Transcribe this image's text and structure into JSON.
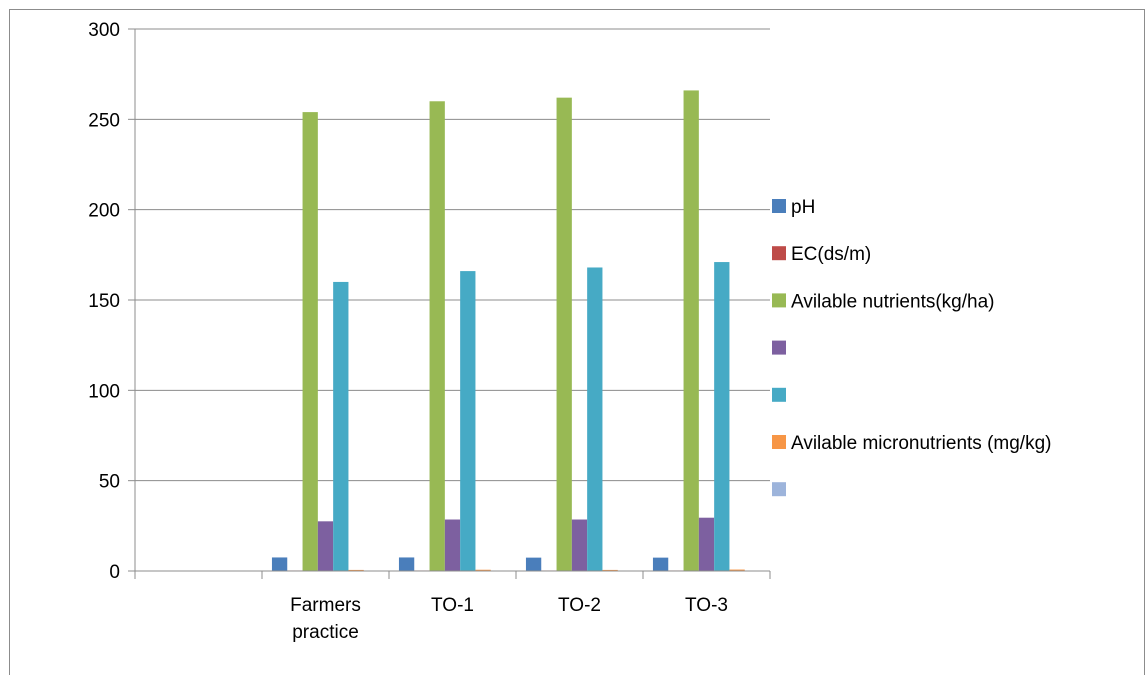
{
  "chart_data": {
    "type": "bar",
    "categories": [
      [
        "",
        ""
      ],
      [
        "Farmers",
        "practice"
      ],
      [
        "TO-1",
        ""
      ],
      [
        "TO-2",
        ""
      ],
      [
        "TO-3",
        ""
      ]
    ],
    "ylim": [
      0,
      300
    ],
    "yticks": [
      0,
      50,
      100,
      150,
      200,
      250,
      300
    ],
    "grid": true,
    "legend_position": "right",
    "series": [
      {
        "name": "pH",
        "color": "#4a7ebb",
        "values": [
          0,
          7.5,
          7.5,
          7.4,
          7.4
        ]
      },
      {
        "name": "EC(ds/m)",
        "color": "#be4b48",
        "values": [
          0,
          0.3,
          0.3,
          0.3,
          0.3
        ]
      },
      {
        "name": "Avilable nutrients(kg/ha)",
        "color": "#98b954",
        "values": [
          0,
          254,
          260,
          262,
          266
        ]
      },
      {
        "name": "",
        "color": "#7d60a0",
        "values": [
          0,
          27.5,
          28.5,
          28.5,
          29.5
        ]
      },
      {
        "name": "",
        "color": "#46aac5",
        "values": [
          0,
          160,
          166,
          168,
          171
        ]
      },
      {
        "name": "Avilable micronutrients (mg/kg)",
        "color": "#f79646",
        "values": [
          0,
          0.6,
          0.7,
          0.6,
          0.8
        ]
      },
      {
        "name": "",
        "color": "#9db4db",
        "values": [
          0,
          0.2,
          0.2,
          0.2,
          0.2
        ]
      }
    ]
  }
}
